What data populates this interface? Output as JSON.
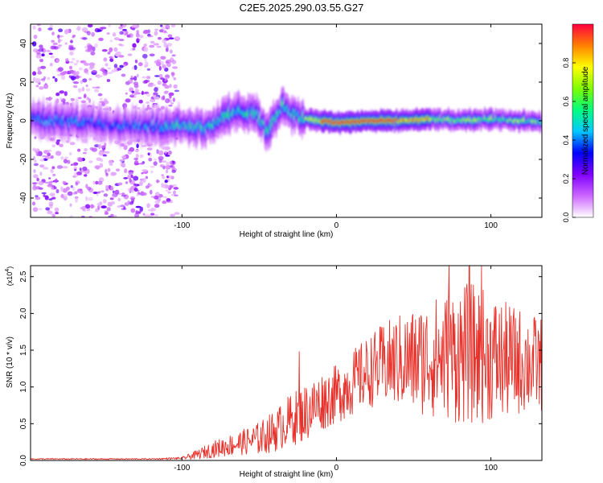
{
  "figure_title": "C2E5.2025.290.03.55.G27",
  "chart_data": [
    {
      "type": "heatmap",
      "title": "",
      "xlabel": "Height of straight line (km)",
      "ylabel": "Frequency (Hz)",
      "xlim": [
        -198,
        133
      ],
      "ylim": [
        -50,
        50
      ],
      "x_ticks": [
        -100,
        0,
        100
      ],
      "x_tick_labels": [
        "-100",
        "0",
        "100"
      ],
      "y_ticks": [
        -40,
        -20,
        0,
        20,
        40
      ],
      "y_tick_labels": [
        "-40",
        "-20",
        "0",
        "20",
        "40"
      ],
      "grid": false,
      "colorbar": {
        "label": "Normalized spectral amplitude",
        "range": [
          0,
          1
        ],
        "ticks": [
          0.0,
          0.2,
          0.4,
          0.6,
          0.8
        ],
        "tick_labels": [
          "0.0",
          "0.2",
          "0.4",
          "0.6",
          "0.8"
        ],
        "colors": [
          "#ffffff",
          "#cc66ff",
          "#8000ff",
          "#0000ff",
          "#00c8ff",
          "#00ff80",
          "#80ff00",
          "#ffff00",
          "#ff8000",
          "#ff0040"
        ]
      },
      "noise_region_x": [
        -196,
        -103
      ],
      "ridge": [
        {
          "x": -198,
          "f": 1
        },
        {
          "x": -180,
          "f": 0
        },
        {
          "x": -120,
          "f": -3
        },
        {
          "x": -100,
          "f": -2
        },
        {
          "x": -85,
          "f": -4
        },
        {
          "x": -70,
          "f": 3
        },
        {
          "x": -60,
          "f": 5
        },
        {
          "x": -52,
          "f": 4
        },
        {
          "x": -45,
          "f": -6
        },
        {
          "x": -35,
          "f": 8
        },
        {
          "x": -25,
          "f": 2
        },
        {
          "x": -10,
          "f": 0
        },
        {
          "x": 0,
          "f": -1
        },
        {
          "x": 20,
          "f": 0
        },
        {
          "x": 40,
          "f": 0
        },
        {
          "x": 60,
          "f": 1
        },
        {
          "x": 80,
          "f": 0
        },
        {
          "x": 100,
          "f": 1
        },
        {
          "x": 120,
          "f": 0
        },
        {
          "x": 133,
          "f": -1
        }
      ]
    },
    {
      "type": "line",
      "title": "",
      "xlabel": "Height of straight line (km)",
      "ylabel": "SNR (10 * v/v)",
      "y_multiplier": "(x10",
      "y_multiplier_exp": "4",
      "y_multiplier_close": ")",
      "xlim": [
        -198,
        133
      ],
      "ylim": [
        0,
        2.65
      ],
      "x_ticks": [
        -100,
        0,
        100
      ],
      "x_tick_labels": [
        "-100",
        "0",
        "100"
      ],
      "y_ticks": [
        0,
        0.5,
        1.0,
        1.5,
        2.0,
        2.5
      ],
      "y_tick_labels": [
        "0.0",
        "0.5",
        "1.0",
        "1.5",
        "2.0",
        "2.5"
      ],
      "grid": false,
      "line_color": "#e8312a",
      "series": [
        {
          "x": [
            -198,
            -150,
            -120,
            -100,
            -90,
            -80,
            -70,
            -60,
            -50,
            -40,
            -30,
            -20,
            -10,
            0,
            10,
            20,
            30,
            40,
            50,
            60,
            70,
            80,
            90,
            100,
            110,
            120,
            133
          ],
          "mean": [
            0.02,
            0.02,
            0.02,
            0.03,
            0.08,
            0.15,
            0.2,
            0.25,
            0.3,
            0.4,
            0.55,
            0.65,
            0.8,
            0.9,
            1.05,
            1.2,
            1.3,
            1.35,
            1.35,
            1.4,
            1.4,
            1.45,
            1.45,
            1.4,
            1.35,
            1.35,
            1.3
          ],
          "amplitude": [
            0.005,
            0.005,
            0.005,
            0.01,
            0.04,
            0.07,
            0.09,
            0.11,
            0.14,
            0.18,
            0.22,
            0.25,
            0.25,
            0.25,
            0.28,
            0.3,
            0.35,
            0.4,
            0.45,
            0.5,
            0.55,
            0.6,
            0.6,
            0.55,
            0.5,
            0.45,
            0.4
          ]
        }
      ],
      "peaks": [
        {
          "x": -24,
          "y": 1.48
        },
        {
          "x": 73,
          "y": 2.65
        },
        {
          "x": 86,
          "y": 2.65
        },
        {
          "x": 94,
          "y": 2.65
        }
      ]
    }
  ]
}
